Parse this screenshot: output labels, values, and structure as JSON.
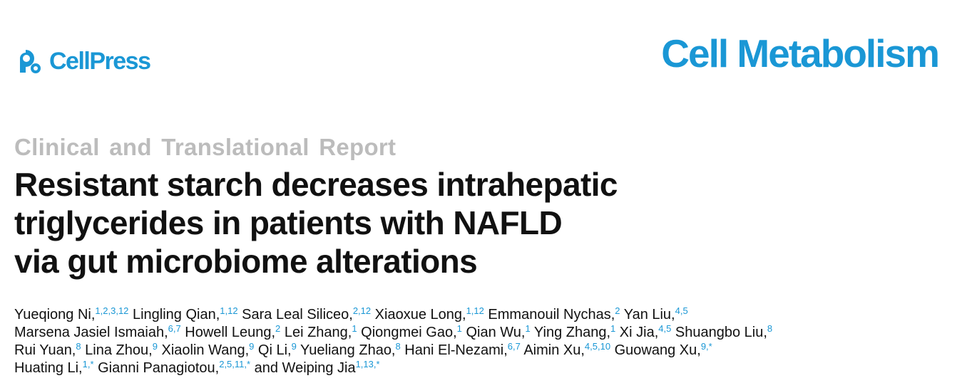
{
  "header": {
    "publisher": "CellPress",
    "publisher_logo_icon": "cellpress-logo-icon",
    "journal": "Cell Metabolism",
    "accent_color": "#1a97d5"
  },
  "article": {
    "type": "Clinical and Translational Report",
    "title_lines": [
      "Resistant starch decreases intrahepatic",
      "triglycerides in patients with NAFLD",
      "via gut microbiome alterations"
    ]
  },
  "authors": {
    "lines": [
      [
        {
          "name": "Yueqiong Ni,",
          "aff": "1,2,3,12"
        },
        {
          "name": " Lingling Qian,",
          "aff": "1,12"
        },
        {
          "name": " Sara Leal Siliceo,",
          "aff": "2,12"
        },
        {
          "name": " Xiaoxue Long,",
          "aff": "1,12"
        },
        {
          "name": " Emmanouil Nychas,",
          "aff": "2"
        },
        {
          "name": " Yan Liu,",
          "aff": "4,5"
        }
      ],
      [
        {
          "name": "Marsena Jasiel Ismaiah,",
          "aff": "6,7"
        },
        {
          "name": " Howell Leung,",
          "aff": "2"
        },
        {
          "name": " Lei Zhang,",
          "aff": "1"
        },
        {
          "name": " Qiongmei Gao,",
          "aff": "1"
        },
        {
          "name": " Qian Wu,",
          "aff": "1"
        },
        {
          "name": " Ying Zhang,",
          "aff": "1"
        },
        {
          "name": " Xi Jia,",
          "aff": "4,5"
        },
        {
          "name": " Shuangbo Liu,",
          "aff": "8"
        }
      ],
      [
        {
          "name": "Rui Yuan,",
          "aff": "8"
        },
        {
          "name": " Lina Zhou,",
          "aff": "9"
        },
        {
          "name": " Xiaolin Wang,",
          "aff": "9"
        },
        {
          "name": " Qi Li,",
          "aff": "9"
        },
        {
          "name": " Yueliang Zhao,",
          "aff": "8"
        },
        {
          "name": " Hani El-Nezami,",
          "aff": "6,7"
        },
        {
          "name": " Aimin Xu,",
          "aff": "4,5,10"
        },
        {
          "name": " Guowang Xu,",
          "aff": "9,*"
        }
      ],
      [
        {
          "name": "Huating Li,",
          "aff": "1,*"
        },
        {
          "name": " Gianni Panagiotou,",
          "aff": "2,5,11,*"
        },
        {
          "name": " and Weiping Jia",
          "aff": "1,13,*"
        }
      ]
    ]
  }
}
